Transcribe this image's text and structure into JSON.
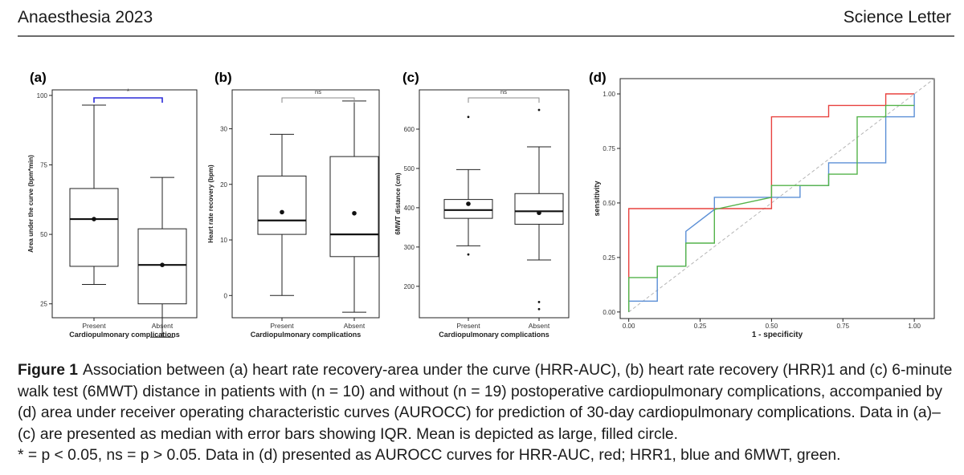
{
  "header": {
    "journal": "Anaesthesia 2023",
    "article_type": "Science Letter"
  },
  "panels": {
    "a": {
      "label": "(a)"
    },
    "b": {
      "label": "(b)"
    },
    "c": {
      "label": "(c)"
    },
    "d": {
      "label": "(d)"
    }
  },
  "chart_data": [
    {
      "panel": "a",
      "type": "boxplot",
      "xlabel": "Cardiopulmonary complications",
      "ylabel": "Area under the curve (bpm*min)",
      "ylim": [
        20,
        102
      ],
      "yticks": [
        25,
        50,
        75,
        100
      ],
      "categories": [
        "Present",
        "Absent"
      ],
      "boxes": [
        {
          "category": "Present",
          "whisker_low": 32,
          "q1": 38.5,
          "median": 55.5,
          "q3": 66.5,
          "whisker_high": 96.5,
          "mean": 55.5,
          "outliers": []
        },
        {
          "category": "Absent",
          "whisker_low": 13,
          "q1": 25,
          "median": 39,
          "q3": 52,
          "whisker_high": 70.5,
          "mean": 39,
          "outliers": []
        }
      ],
      "significance": {
        "label": "*",
        "color": "#2b2bd9"
      }
    },
    {
      "panel": "b",
      "type": "boxplot",
      "xlabel": "Cardiopulmonary complications",
      "ylabel": "Heart rate recovery (bpm)",
      "ylim": [
        -4,
        37
      ],
      "yticks": [
        0,
        10,
        20,
        30
      ],
      "categories": [
        "Present",
        "Absent"
      ],
      "boxes": [
        {
          "category": "Present",
          "whisker_low": 0,
          "q1": 11,
          "median": 13.5,
          "q3": 21.5,
          "whisker_high": 29,
          "mean": 15,
          "outliers": []
        },
        {
          "category": "Absent",
          "whisker_low": -3,
          "q1": 7,
          "median": 11,
          "q3": 25,
          "whisker_high": 35,
          "mean": 14.8,
          "outliers": []
        }
      ],
      "significance": {
        "label": "ns",
        "color": "#8a8a8a"
      }
    },
    {
      "panel": "c",
      "type": "boxplot",
      "xlabel": "Cardiopulmonary complications",
      "ylabel": "6MWT distance (cm)",
      "ylim": [
        120,
        700
      ],
      "yticks": [
        200,
        300,
        400,
        500,
        600
      ],
      "categories": [
        "Present",
        "Absent"
      ],
      "boxes": [
        {
          "category": "Present",
          "whisker_low": 303,
          "q1": 373,
          "median": 394,
          "q3": 421,
          "whisker_high": 497,
          "mean": 410,
          "outliers": [
            631,
            281
          ]
        },
        {
          "category": "Absent",
          "whisker_low": 267,
          "q1": 358,
          "median": 391,
          "q3": 436,
          "whisker_high": 555,
          "mean": 387,
          "outliers": [
            649,
            160,
            142
          ]
        }
      ],
      "significance": {
        "label": "ns",
        "color": "#8a8a8a"
      }
    },
    {
      "panel": "d",
      "type": "line",
      "xlabel": "1 - specificity",
      "ylabel": "sensitivity",
      "xlim": [
        -0.03,
        1.07
      ],
      "ylim": [
        -0.03,
        1.07
      ],
      "xticks": [
        "0.00",
        "0.25",
        "0.50",
        "0.75",
        "1.00"
      ],
      "yticks": [
        "0.00",
        "0.25",
        "0.50",
        "0.75",
        "1.00"
      ],
      "diagonal_color": "#b5b5b5",
      "series": [
        {
          "color": "#e8423f",
          "x": [
            0,
            0,
            0.5,
            0.5,
            0.7,
            0.7,
            0.9,
            0.9,
            1.0
          ],
          "y": [
            0,
            0.474,
            0.474,
            0.895,
            0.895,
            0.947,
            0.947,
            1.0,
            1.0
          ]
        },
        {
          "color": "#5b8fd6",
          "x": [
            0,
            0,
            0.1,
            0.1,
            0.2,
            0.2,
            0.3,
            0.3,
            0.6,
            0.6,
            0.7,
            0.7,
            0.9,
            0.9,
            1.0,
            1.0
          ],
          "y": [
            0,
            0.05,
            0.05,
            0.21,
            0.21,
            0.37,
            0.47,
            0.526,
            0.526,
            0.58,
            0.58,
            0.684,
            0.684,
            0.895,
            0.895,
            1.0
          ]
        },
        {
          "color": "#54b34a",
          "x": [
            0,
            0,
            0.1,
            0.1,
            0.2,
            0.2,
            0.3,
            0.3,
            0.5,
            0.5,
            0.6,
            0.6,
            0.7,
            0.7,
            0.8,
            0.8,
            0.9,
            0.9,
            1.0
          ],
          "y": [
            0,
            0.158,
            0.158,
            0.21,
            0.21,
            0.316,
            0.316,
            0.47,
            0.526,
            0.58,
            0.58,
            0.58,
            0.58,
            0.632,
            0.632,
            0.895,
            0.895,
            0.947,
            0.947
          ]
        }
      ]
    }
  ],
  "caption": {
    "label": "Figure 1",
    "text": "Association between (a) heart rate recovery-area under the curve (HRR-AUC), (b) heart rate recovery (HRR)1 and (c) 6-minute walk test (6MWT) distance in patients with (n = 10) and without (n = 19) postoperative cardiopulmonary complications, accompanied by (d) area under receiver operating characteristic curves (AUROCC) for prediction of 30-day cardiopulmonary complications. Data in (a)–(c) are presented as median with error bars showing IQR. Mean is depicted as large, filled circle.",
    "text2": "* = p < 0.05, ns = p > 0.05. Data in (d) presented as AUROCC curves for HRR-AUC, red; HRR1, blue and 6MWT, green."
  }
}
